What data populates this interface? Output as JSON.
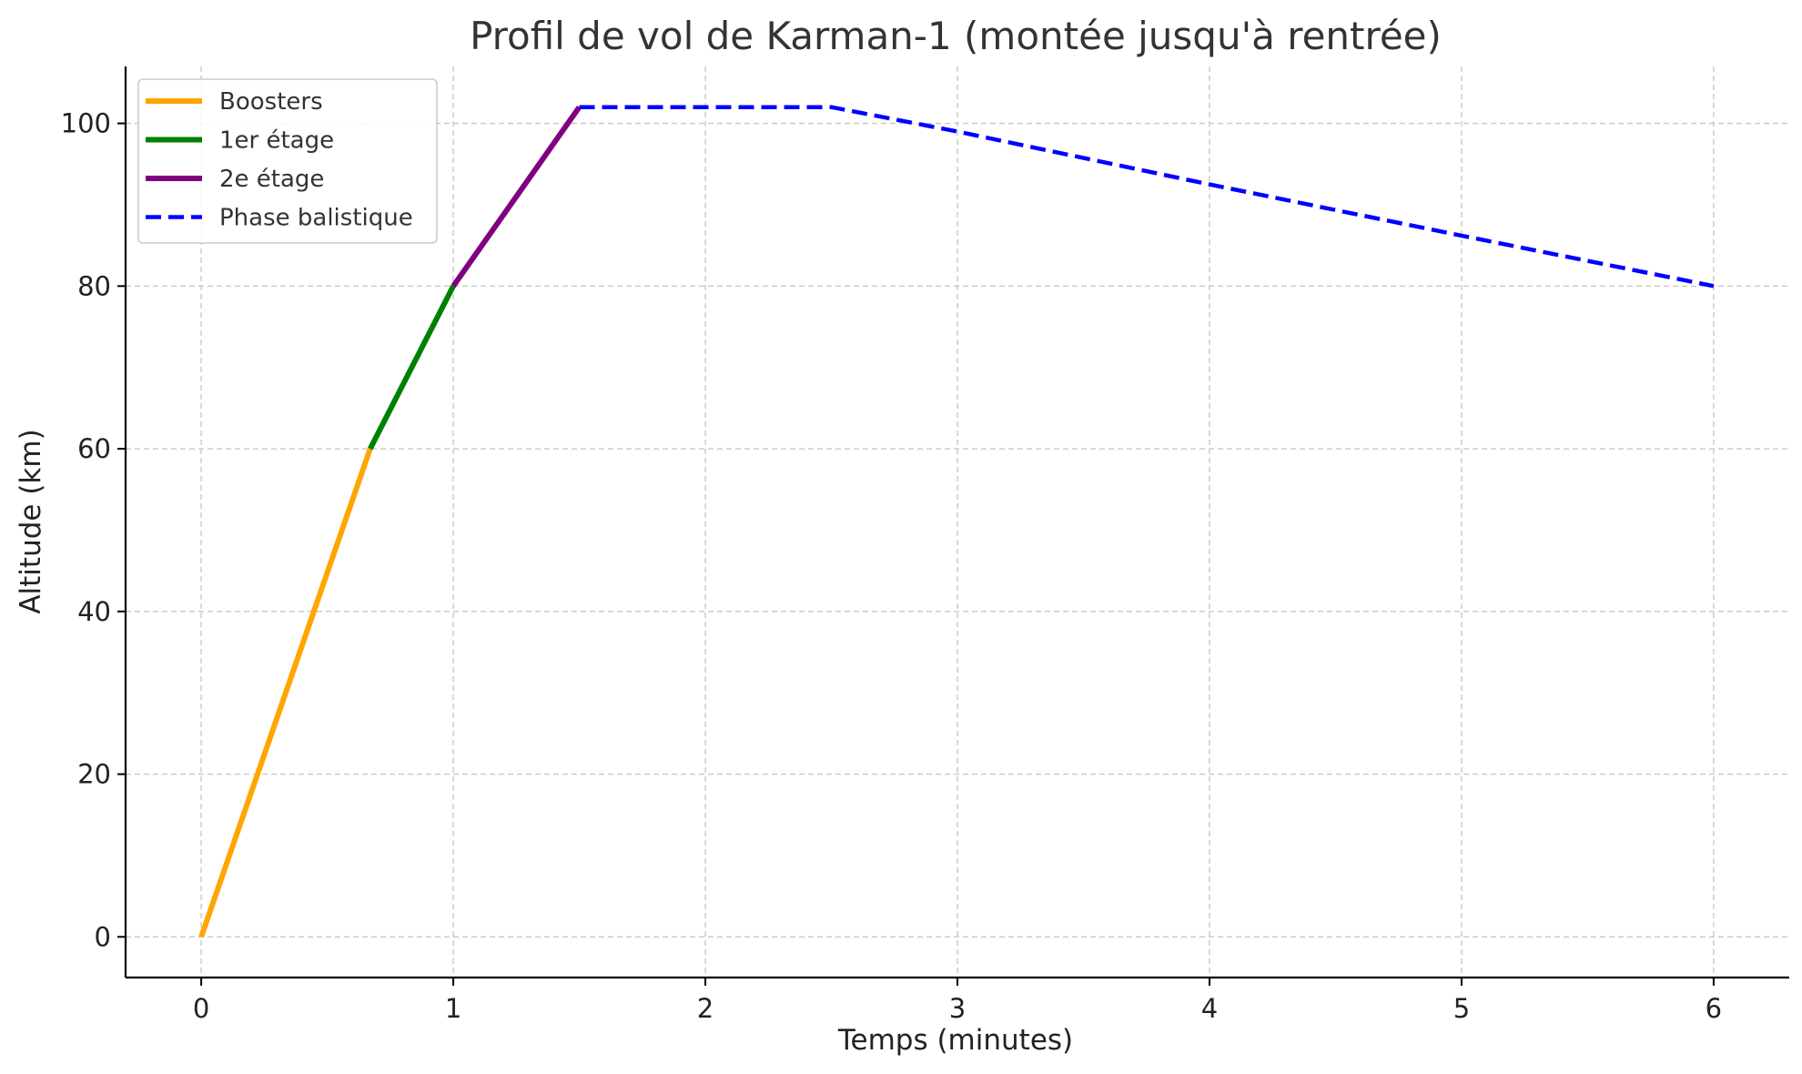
{
  "chart_data": {
    "type": "line",
    "title": "Profil de vol de Karman-1 (montée jusqu'à rentrée)",
    "xlabel": "Temps (minutes)",
    "ylabel": "Altitude (km)",
    "xlim": [
      -0.3,
      6.3
    ],
    "ylim": [
      -5,
      107
    ],
    "x_ticks": [
      0,
      1,
      2,
      3,
      4,
      5,
      6
    ],
    "y_ticks": [
      0,
      20,
      40,
      60,
      80,
      100
    ],
    "grid": true,
    "legend_position": "top-left",
    "series": [
      {
        "name": "Boosters",
        "color": "#FFA500",
        "style": "solid",
        "points": [
          [
            0,
            0
          ],
          [
            0.67,
            60
          ]
        ]
      },
      {
        "name": "1er étage",
        "color": "#008000",
        "style": "solid",
        "points": [
          [
            0.67,
            60
          ],
          [
            1.0,
            80
          ]
        ]
      },
      {
        "name": "2e étage",
        "color": "#800080",
        "style": "solid",
        "points": [
          [
            1.0,
            80
          ],
          [
            1.5,
            102
          ]
        ]
      },
      {
        "name": "Phase balistique",
        "color": "#0000FF",
        "style": "dashed",
        "points": [
          [
            1.5,
            102
          ],
          [
            2.5,
            102
          ],
          [
            3.0,
            99
          ],
          [
            4.0,
            92.5
          ],
          [
            5.0,
            86.2
          ],
          [
            6.0,
            80
          ]
        ]
      }
    ]
  }
}
